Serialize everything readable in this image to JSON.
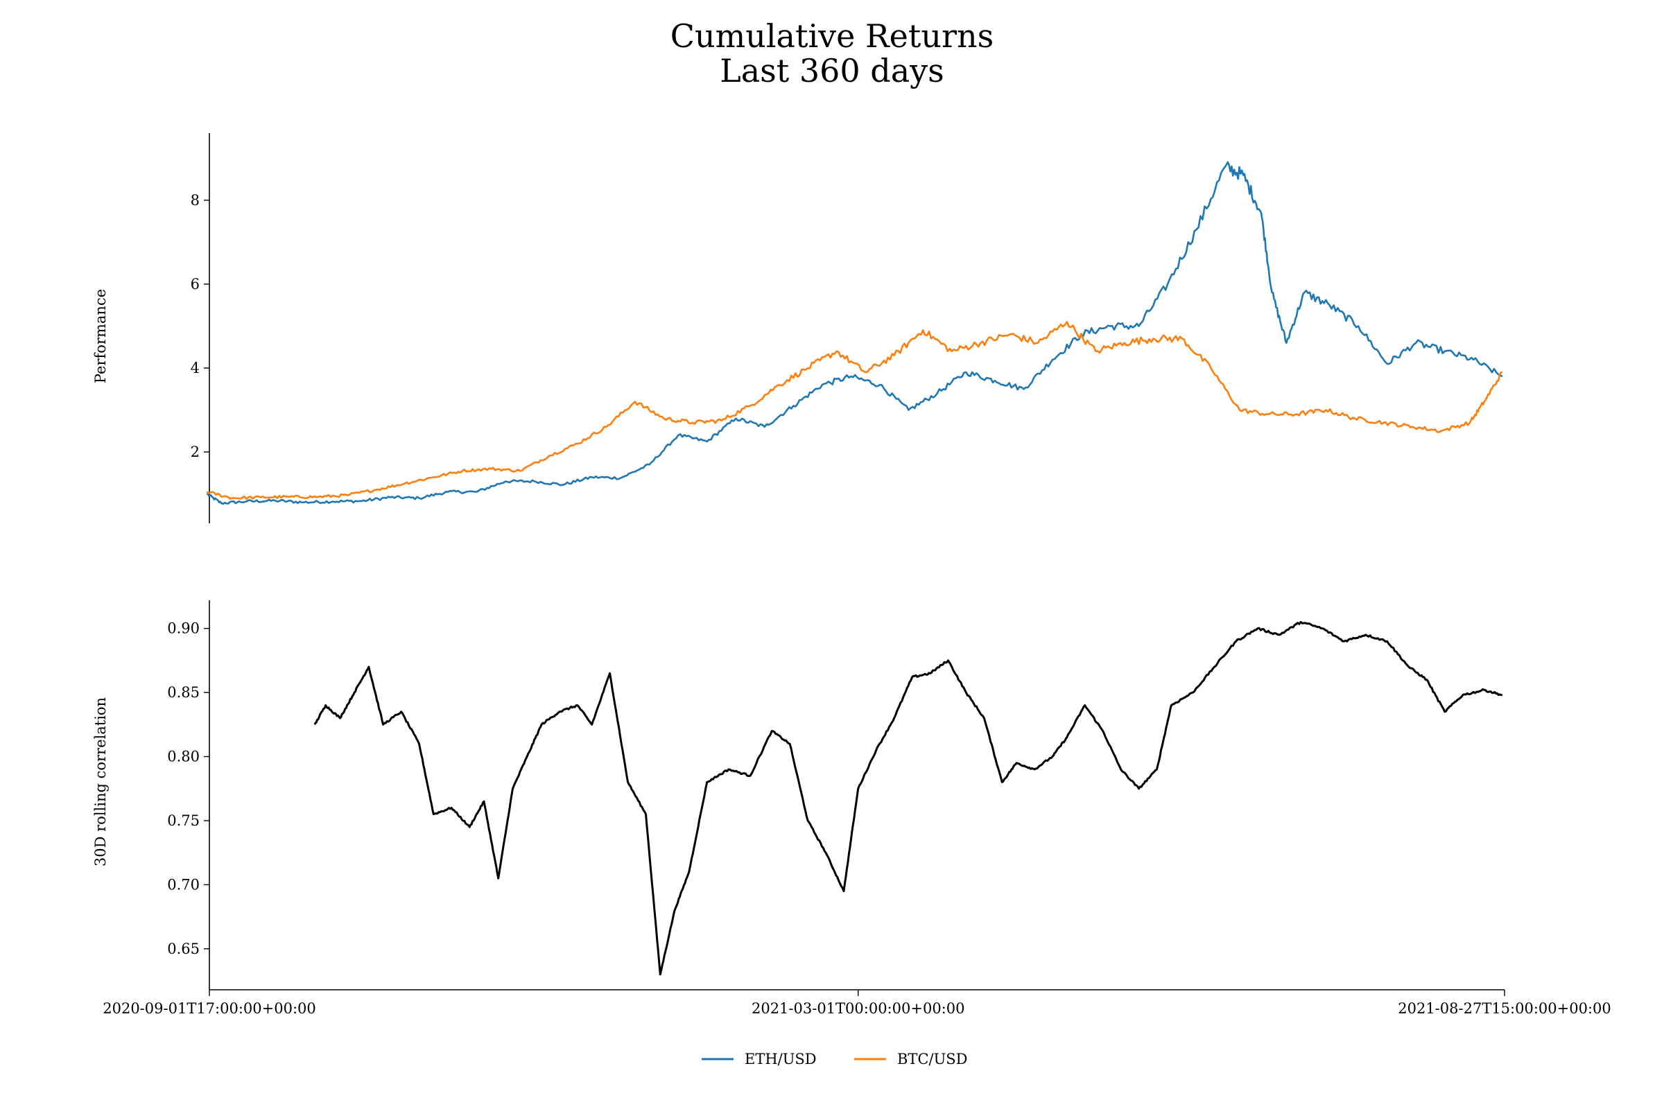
{
  "chart_data": {
    "type": "line",
    "title": [
      "Cumulative Returns",
      "Last 360 days"
    ],
    "x_start": "2020-09-01T17:00:00+00:00",
    "x_end": "2021-08-27T15:00:00+00:00",
    "x_tick_labels": [
      "2020-09-01T17:00:00+00:00",
      "2021-03-01T00:00:00+00:00",
      "2021-08-27T15:00:00+00:00"
    ],
    "legend": {
      "placement": "bottom-center",
      "entries": [
        "ETH/USD",
        "BTC/USD"
      ]
    },
    "colors": {
      "ETH/USD": "#1f77b4",
      "BTC/USD": "#ff7f0e",
      "correlation": "#000000"
    },
    "top_panel": {
      "ylabel": "Performance",
      "ylim": [
        0.3,
        9.6
      ],
      "yticks": [
        "2",
        "4",
        "6",
        "8"
      ],
      "series": [
        {
          "name": "ETH/USD",
          "points": [
            [
              "2020-09-01",
              1.0
            ],
            [
              "2020-09-05",
              0.78
            ],
            [
              "2020-09-12",
              0.82
            ],
            [
              "2020-09-20",
              0.84
            ],
            [
              "2020-09-28",
              0.8
            ],
            [
              "2020-10-06",
              0.82
            ],
            [
              "2020-10-14",
              0.83
            ],
            [
              "2020-10-22",
              0.92
            ],
            [
              "2020-10-30",
              0.9
            ],
            [
              "2020-11-07",
              1.05
            ],
            [
              "2020-11-15",
              1.05
            ],
            [
              "2020-11-23",
              1.3
            ],
            [
              "2020-12-01",
              1.3
            ],
            [
              "2020-12-09",
              1.22
            ],
            [
              "2020-12-17",
              1.4
            ],
            [
              "2020-12-25",
              1.38
            ],
            [
              "2021-01-02",
              1.7
            ],
            [
              "2021-01-10",
              2.4
            ],
            [
              "2021-01-18",
              2.25
            ],
            [
              "2021-01-26",
              2.8
            ],
            [
              "2021-02-03",
              2.6
            ],
            [
              "2021-02-11",
              3.1
            ],
            [
              "2021-02-19",
              3.6
            ],
            [
              "2021-02-27",
              3.8
            ],
            [
              "2021-03-07",
              3.6
            ],
            [
              "2021-03-15",
              3.0
            ],
            [
              "2021-03-23",
              3.4
            ],
            [
              "2021-03-31",
              3.9
            ],
            [
              "2021-04-08",
              3.7
            ],
            [
              "2021-04-16",
              3.5
            ],
            [
              "2021-04-24",
              4.2
            ],
            [
              "2021-05-02",
              4.8
            ],
            [
              "2021-05-10",
              5.0
            ],
            [
              "2021-05-18",
              5.0
            ],
            [
              "2021-05-26",
              6.0
            ],
            [
              "2021-06-03",
              7.3
            ],
            [
              "2021-06-11",
              8.8
            ],
            [
              "2021-06-16",
              8.6
            ],
            [
              "2021-06-21",
              7.7
            ],
            [
              "2021-06-24",
              5.8
            ],
            [
              "2021-06-28",
              4.6
            ],
            [
              "2021-07-03",
              5.8
            ],
            [
              "2021-07-10",
              5.5
            ],
            [
              "2021-07-18",
              5.0
            ],
            [
              "2021-07-26",
              4.1
            ],
            [
              "2021-08-03",
              4.6
            ],
            [
              "2021-08-11",
              4.4
            ],
            [
              "2021-08-19",
              4.2
            ],
            [
              "2021-08-27",
              3.8
            ]
          ]
        },
        {
          "name": "BTC/USD",
          "points": [
            [
              "2020-09-01",
              1.05
            ],
            [
              "2020-09-08",
              0.9
            ],
            [
              "2020-09-16",
              0.92
            ],
            [
              "2020-09-24",
              0.93
            ],
            [
              "2020-10-02",
              0.93
            ],
            [
              "2020-10-10",
              0.97
            ],
            [
              "2020-10-18",
              1.1
            ],
            [
              "2020-10-26",
              1.25
            ],
            [
              "2020-11-03",
              1.4
            ],
            [
              "2020-11-11",
              1.55
            ],
            [
              "2020-11-19",
              1.6
            ],
            [
              "2020-11-27",
              1.55
            ],
            [
              "2020-12-05",
              1.9
            ],
            [
              "2020-12-13",
              2.2
            ],
            [
              "2020-12-21",
              2.6
            ],
            [
              "2020-12-29",
              3.2
            ],
            [
              "2021-01-06",
              2.8
            ],
            [
              "2021-01-14",
              2.7
            ],
            [
              "2021-01-22",
              2.75
            ],
            [
              "2021-01-30",
              3.1
            ],
            [
              "2021-02-07",
              3.6
            ],
            [
              "2021-02-15",
              4.0
            ],
            [
              "2021-02-23",
              4.4
            ],
            [
              "2021-03-03",
              3.9
            ],
            [
              "2021-03-11",
              4.3
            ],
            [
              "2021-03-19",
              4.9
            ],
            [
              "2021-03-27",
              4.4
            ],
            [
              "2021-04-04",
              4.6
            ],
            [
              "2021-04-12",
              4.8
            ],
            [
              "2021-04-20",
              4.6
            ],
            [
              "2021-04-28",
              5.1
            ],
            [
              "2021-05-06",
              4.4
            ],
            [
              "2021-05-14",
              4.6
            ],
            [
              "2021-05-22",
              4.7
            ],
            [
              "2021-05-30",
              4.7
            ],
            [
              "2021-06-07",
              4.0
            ],
            [
              "2021-06-15",
              3.0
            ],
            [
              "2021-06-23",
              2.9
            ],
            [
              "2021-07-01",
              2.9
            ],
            [
              "2021-07-09",
              3.0
            ],
            [
              "2021-07-17",
              2.8
            ],
            [
              "2021-07-25",
              2.7
            ],
            [
              "2021-08-02",
              2.6
            ],
            [
              "2021-08-10",
              2.5
            ],
            [
              "2021-08-18",
              2.7
            ],
            [
              "2021-08-22",
              3.2
            ],
            [
              "2021-08-27",
              3.9
            ]
          ]
        }
      ]
    },
    "bottom_panel": {
      "ylabel": "30D rolling correlation",
      "ylim": [
        0.618,
        0.922
      ],
      "yticks": [
        "0.65",
        "0.70",
        "0.75",
        "0.80",
        "0.85",
        "0.90"
      ],
      "series": [
        {
          "name": "",
          "points": [
            [
              "2020-10-01",
              0.825
            ],
            [
              "2020-10-04",
              0.84
            ],
            [
              "2020-10-08",
              0.83
            ],
            [
              "2020-10-12",
              0.85
            ],
            [
              "2020-10-16",
              0.87
            ],
            [
              "2020-10-20",
              0.825
            ],
            [
              "2020-10-25",
              0.835
            ],
            [
              "2020-10-30",
              0.81
            ],
            [
              "2020-11-03",
              0.755
            ],
            [
              "2020-11-08",
              0.76
            ],
            [
              "2020-11-13",
              0.745
            ],
            [
              "2020-11-17",
              0.765
            ],
            [
              "2020-11-21",
              0.705
            ],
            [
              "2020-11-25",
              0.775
            ],
            [
              "2020-11-29",
              0.8
            ],
            [
              "2020-12-03",
              0.825
            ],
            [
              "2020-12-08",
              0.835
            ],
            [
              "2020-12-13",
              0.84
            ],
            [
              "2020-12-17",
              0.825
            ],
            [
              "2020-12-22",
              0.865
            ],
            [
              "2020-12-27",
              0.78
            ],
            [
              "2021-01-01",
              0.755
            ],
            [
              "2021-01-05",
              0.63
            ],
            [
              "2021-01-09",
              0.68
            ],
            [
              "2021-01-13",
              0.71
            ],
            [
              "2021-01-18",
              0.78
            ],
            [
              "2021-01-24",
              0.79
            ],
            [
              "2021-01-30",
              0.785
            ],
            [
              "2021-02-05",
              0.82
            ],
            [
              "2021-02-10",
              0.81
            ],
            [
              "2021-02-15",
              0.75
            ],
            [
              "2021-02-20",
              0.725
            ],
            [
              "2021-02-25",
              0.695
            ],
            [
              "2021-03-01",
              0.775
            ],
            [
              "2021-03-06",
              0.805
            ],
            [
              "2021-03-11",
              0.83
            ],
            [
              "2021-03-16",
              0.862
            ],
            [
              "2021-03-21",
              0.865
            ],
            [
              "2021-03-26",
              0.875
            ],
            [
              "2021-03-31",
              0.85
            ],
            [
              "2021-04-05",
              0.83
            ],
            [
              "2021-04-10",
              0.78
            ],
            [
              "2021-04-14",
              0.795
            ],
            [
              "2021-04-19",
              0.79
            ],
            [
              "2021-04-24",
              0.8
            ],
            [
              "2021-04-28",
              0.815
            ],
            [
              "2021-05-03",
              0.84
            ],
            [
              "2021-05-08",
              0.82
            ],
            [
              "2021-05-13",
              0.79
            ],
            [
              "2021-05-18",
              0.775
            ],
            [
              "2021-05-23",
              0.79
            ],
            [
              "2021-05-27",
              0.84
            ],
            [
              "2021-06-02",
              0.85
            ],
            [
              "2021-06-08",
              0.87
            ],
            [
              "2021-06-14",
              0.89
            ],
            [
              "2021-06-20",
              0.9
            ],
            [
              "2021-06-26",
              0.895
            ],
            [
              "2021-07-02",
              0.905
            ],
            [
              "2021-07-08",
              0.9
            ],
            [
              "2021-07-14",
              0.89
            ],
            [
              "2021-07-20",
              0.895
            ],
            [
              "2021-07-26",
              0.89
            ],
            [
              "2021-08-01",
              0.87
            ],
            [
              "2021-08-06",
              0.86
            ],
            [
              "2021-08-11",
              0.835
            ],
            [
              "2021-08-16",
              0.848
            ],
            [
              "2021-08-22",
              0.852
            ],
            [
              "2021-08-27",
              0.848
            ]
          ]
        }
      ]
    }
  }
}
